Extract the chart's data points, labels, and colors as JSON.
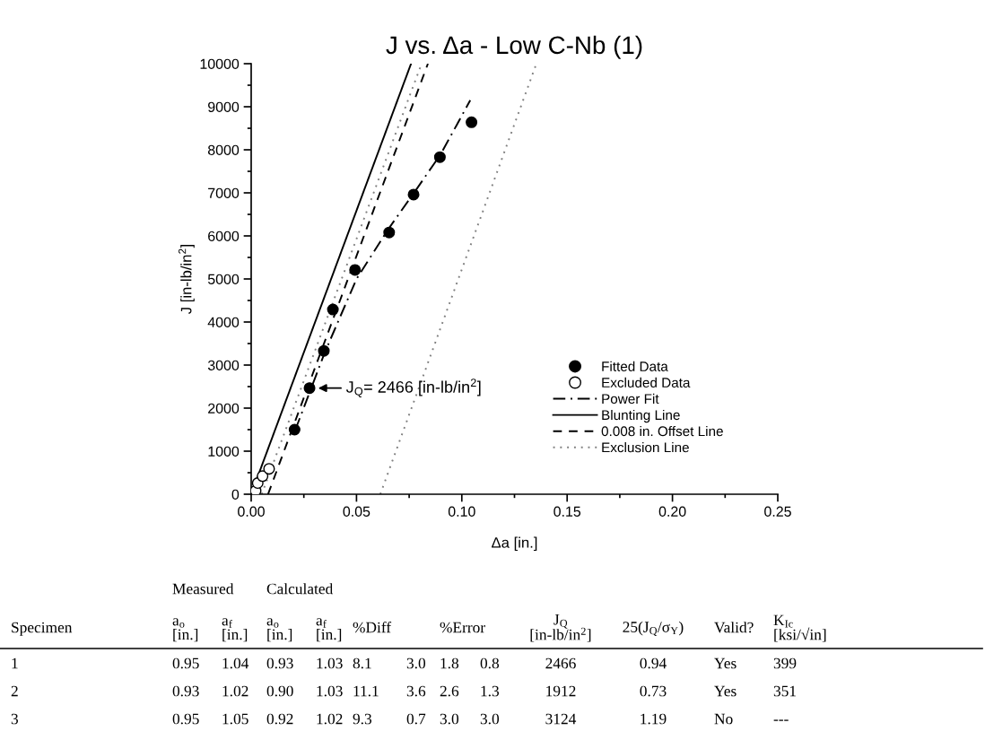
{
  "chart_data": [
    {
      "type": "scatter",
      "title": "J vs. Δa - Low C-Nb (1)",
      "xlabel": "Δa [in.]",
      "ylabel": "J [in-lb/in$^{2}$]",
      "xlim": [
        0,
        0.25
      ],
      "ylim": [
        0,
        10000
      ],
      "xticks": [
        {
          "value": 0,
          "label": "0.00"
        },
        {
          "value": 0.05,
          "label": "0.05"
        },
        {
          "value": 0.1,
          "label": "0.10"
        },
        {
          "value": 0.15,
          "label": "0.15"
        },
        {
          "value": 0.2,
          "label": "0.20"
        },
        {
          "value": 0.25,
          "label": "0.25"
        }
      ],
      "yticks": [
        0,
        1000,
        2000,
        3000,
        4000,
        5000,
        6000,
        7000,
        8000,
        9000,
        10000
      ],
      "grid": false,
      "legend": "right",
      "series": [
        {
          "name": "Fitted Data",
          "type": "scatter",
          "marker": "circle",
          "color": "#000000",
          "x": [
            0.0206,
            0.0277,
            0.0345,
            0.0388,
            0.0493,
            0.0655,
            0.0771,
            0.0896,
            0.1046
          ],
          "values": [
            1500,
            2466,
            3330,
            4290,
            5210,
            6080,
            6960,
            7830,
            8640
          ]
        },
        {
          "name": "Excluded Data",
          "type": "scatter",
          "marker": "circle",
          "color": "#ffffff",
          "x": [
            0.0021,
            0.0031,
            0.0054,
            0.0085
          ],
          "values": [
            80,
            260,
            420,
            590
          ]
        },
        {
          "name": "Power Fit",
          "type": "line",
          "line_style": "dashdot",
          "color": "#000000",
          "x": [
            0.021,
            0.028,
            0.035,
            0.05,
            0.065,
            0.078,
            0.09,
            0.104
          ],
          "values": [
            1500,
            2400,
            3300,
            5000,
            6150,
            7050,
            7900,
            9150
          ]
        },
        {
          "name": "Blunting Line",
          "type": "line",
          "line_style": "solid",
          "color": "#000000",
          "x": [
            0,
            0.0759
          ],
          "values": [
            0,
            10000
          ]
        },
        {
          "name": "0.008 in. Offset Line",
          "type": "line",
          "line_style": "dashed",
          "color": "#000000",
          "x": [
            0.008,
            0.0839
          ],
          "values": [
            0,
            10000
          ]
        },
        {
          "name": "Exclusion Line",
          "type": "line",
          "line_style": "dotted",
          "color": "#808080",
          "x": [
            0.005,
            0.0809,
            null,
            0.0613,
            0.1354
          ],
          "values": [
            0,
            10000,
            null,
            0,
            10000
          ]
        }
      ],
      "annotations": [
        {
          "text": "J$_{Q}$= 2466 [in-lb/in$^{2}$]",
          "x": 0.0277,
          "y": 2466
        }
      ]
    },
    {
      "type": "other",
      "annotations": [
        "Measured",
        "Calculated",
        "Specimen",
        "a$_{o}$\n[in.]",
        "a$_{f}$\n[in.]",
        "a$_{o}$\n[in.]",
        "a$_{f}$\n[in.]",
        "%Diff",
        "%Error",
        "J$_{Q}$\n[in-lb/in$^{2}$]",
        "25(J$_{Q}$/σ$_{Y}$)",
        "Valid?",
        "K$_{Ic}$\n[ksi/√in]",
        "1",
        "0.95",
        "1.04",
        "0.93",
        "1.03",
        "8.1",
        "3.0",
        "1.8",
        "0.8",
        "2466",
        "0.94",
        "Yes",
        "399",
        "2",
        "0.93",
        "1.02",
        "0.90",
        "1.03",
        "11.1",
        "3.6",
        "2.6",
        "1.3",
        "1912",
        "0.73",
        "Yes",
        "351",
        "3",
        "0.95",
        "1.05",
        "0.92",
        "1.02",
        "9.3",
        "0.7",
        "3.0",
        "3.0",
        "3124",
        "1.19",
        "No",
        "---"
      ]
    }
  ]
}
